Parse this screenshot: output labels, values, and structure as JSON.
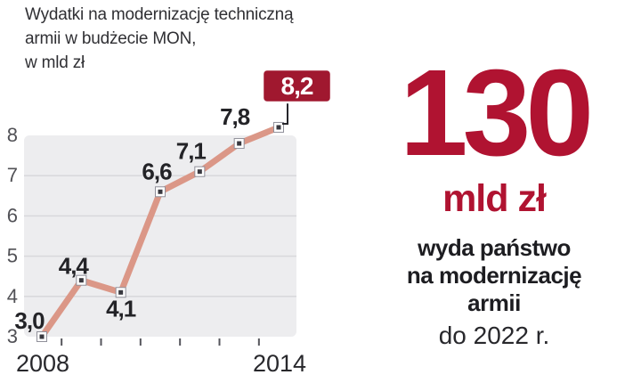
{
  "title": {
    "lines": [
      "Wydatki na modernizację techniczną",
      "armii w budżecie MON,",
      "w mld zł"
    ]
  },
  "chart_data": {
    "type": "line",
    "title": "Wydatki na modernizację techniczną armii w budżecie MON, w mld zł",
    "x": [
      2008,
      2009,
      2010,
      2011,
      2012,
      2013,
      2014
    ],
    "values": [
      3.0,
      4.4,
      4.1,
      6.6,
      7.1,
      7.8,
      8.2
    ],
    "point_labels": [
      "3,0",
      "4,4",
      "4,1",
      "6,6",
      "7,1",
      "7,8",
      "8,2"
    ],
    "highlight_index": 6,
    "highlight_label": "8,2",
    "y_ticks": [
      3,
      4,
      5,
      6,
      7,
      8
    ],
    "ylim": [
      3,
      8
    ],
    "x_tick_labels": [
      "2008",
      "2014"
    ],
    "grid": true,
    "legend": "none",
    "line_color": "#db9787",
    "marker_inner_color": "#38383f",
    "marker_outline_color": "#90909a",
    "plot_bg_color": "#ededef",
    "grid_color": "#d8d8db",
    "label_color": "#232327",
    "axis_label_color_y": "#515156",
    "axis_label_color_x": "#28282c",
    "highlight_badge_color": "#a0182f",
    "highlight_text_color": "#ffffff",
    "connector_color": "#26262b"
  },
  "callout": {
    "big_number": "130",
    "unit": "mld zł",
    "lines_bold": [
      "wyda państwo",
      "na modernizację",
      "armii"
    ],
    "line_regular": "do 2022 r."
  },
  "colors": {
    "accent_red": "#b01331",
    "badge_red": "#a0182f",
    "dark_text": "#1d1d21",
    "title_text": "#303034"
  }
}
